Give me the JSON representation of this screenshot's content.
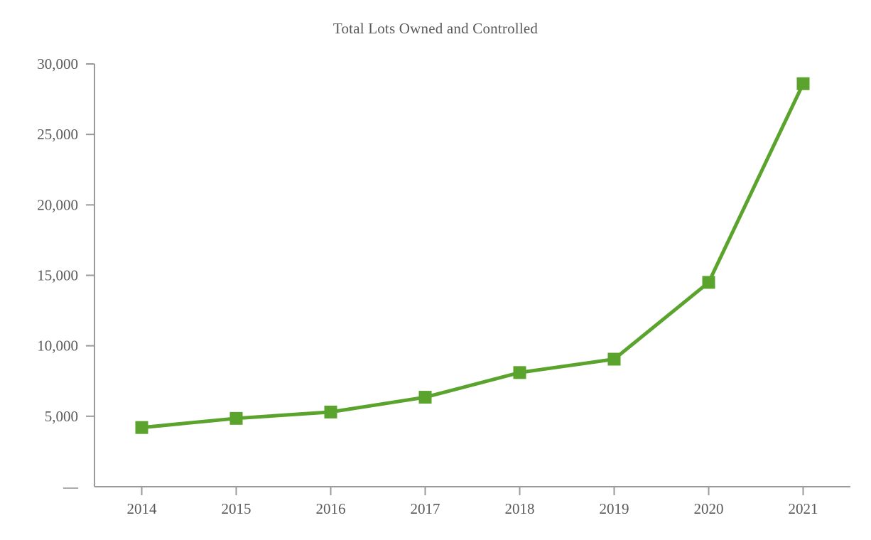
{
  "page": {
    "background": "#ffffff"
  },
  "chart_data": {
    "type": "line",
    "title": "Total Lots Owned and Controlled",
    "categories": [
      "2014",
      "2015",
      "2016",
      "2017",
      "2018",
      "2019",
      "2020",
      "2021"
    ],
    "series": [
      {
        "name": "Total Lots Owned and Controlled",
        "values": [
          4200,
          4850,
          5300,
          6350,
          8100,
          9050,
          14500,
          28600
        ]
      }
    ],
    "xlabel": "",
    "ylabel": "",
    "ylim": [
      0,
      30000
    ],
    "ytick_step": 5000,
    "ytick_labels": [
      "—",
      "5,000",
      "10,000",
      "15,000",
      "20,000",
      "25,000",
      "30,000"
    ],
    "grid": false,
    "legend": false,
    "marker": "square",
    "marker_size": 18,
    "line_width": 5,
    "line_color": "#5aa32d",
    "axis_color": "#9a9a9a",
    "text_color": "#595959",
    "tick_font_size": 21
  }
}
